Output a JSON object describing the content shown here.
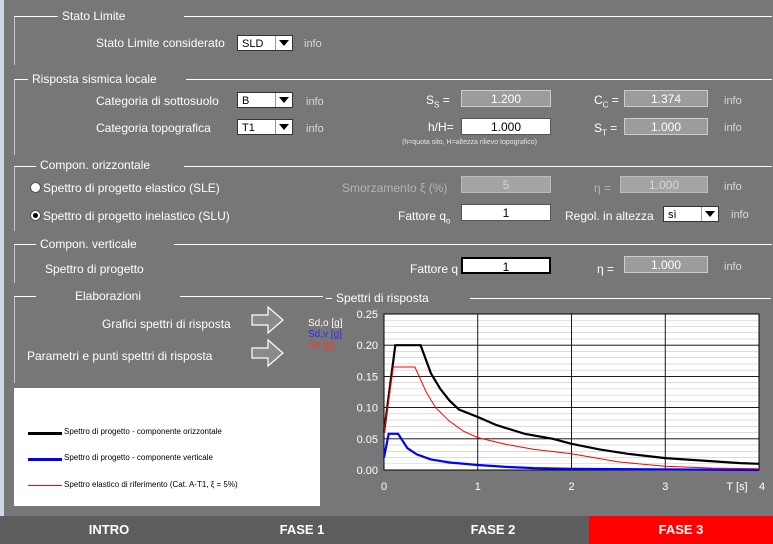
{
  "stato_limite": {
    "title": "Stato Limite",
    "considered_label": "Stato Limite considerato",
    "considered_value": "SLD",
    "info": "info"
  },
  "risposta_locale": {
    "title": "Risposta sismica locale",
    "sottosuolo_label": "Categoria di sottosuolo",
    "sottosuolo_value": "B",
    "topografica_label": "Categoria topografica",
    "topografica_value": "T1",
    "info": "info",
    "ss_label_main": "S",
    "ss_label_sub": "S",
    "ss_value": "1.200",
    "cc_label_main": "C",
    "cc_label_sub": "C",
    "cc_value": "1.374",
    "hh_label": "h/H=",
    "hh_value": "1.000",
    "hh_note": "(h=quota sito, H=altezza rilievo topografico)",
    "st_label_main": "S",
    "st_label_sub": "T",
    "st_value": "1.000"
  },
  "orizzontale": {
    "title": "Compon. orizzontale",
    "elastic_label": "Spettro di progetto elastico (SLE)",
    "inelastic_label": "Spettro di progetto inelastico (SLU)",
    "smorz_label": "Smorzamento ξ (%)",
    "smorz_value": "5",
    "eta_label": "η =",
    "eta_value": "1.000",
    "fattore_label": "Fattore q",
    "fattore_sub": "o",
    "fattore_value": "1",
    "regol_label": "Regol. in altezza",
    "regol_value": "sì",
    "info": "info"
  },
  "verticale": {
    "title": "Compon. verticale",
    "spettro_label": "Spettro di progetto",
    "fattore_label": "Fattore q",
    "fattore_value": "1",
    "eta_label": "η =",
    "eta_value": "1.000",
    "info": "info"
  },
  "elaborazioni": {
    "title": "Elaborazioni",
    "grafici_label": "Grafici spettri di risposta",
    "parametri_label": "Parametri e punti spettri di risposta"
  },
  "legend": {
    "horizontal": "Spettro di progetto - componente orizzontale",
    "vertical": "Spettro di progetto - componente verticale",
    "elastic": "Spettro elastico di riferimento (Cat. A-T1, ξ = 5%)"
  },
  "chart_data": {
    "type": "line",
    "title": "Spettri di risposta",
    "xlabel": "T [s]",
    "ylabel_lines": [
      "Sd,o [g]",
      "Sd,v [g]",
      "Se [g]"
    ],
    "xlim": [
      0,
      4
    ],
    "ylim": [
      0,
      0.25
    ],
    "x_ticks": [
      "0",
      "1",
      "2",
      "3",
      "4"
    ],
    "y_ticks": [
      "0.00",
      "0.05",
      "0.10",
      "0.15",
      "0.20",
      "0.25"
    ],
    "grid": true,
    "series": [
      {
        "name": "Spettro di progetto - componente orizzontale",
        "color": "#000000",
        "x": [
          0,
          0.12,
          0.39,
          0.5,
          0.6,
          0.7,
          0.8,
          1.0,
          1.2,
          1.5,
          1.8,
          2.0,
          2.3,
          2.6,
          3.0,
          3.4,
          3.8,
          4.0
        ],
        "y": [
          0.06,
          0.2,
          0.2,
          0.155,
          0.13,
          0.111,
          0.097,
          0.085,
          0.072,
          0.058,
          0.05,
          0.042,
          0.033,
          0.026,
          0.019,
          0.015,
          0.011,
          0.01
        ]
      },
      {
        "name": "Spettro di progetto - componente verticale",
        "color": "#0000ff",
        "x": [
          0,
          0.05,
          0.15,
          0.25,
          0.35,
          0.5,
          0.7,
          1.0,
          1.3,
          1.6,
          2.0,
          4.0
        ],
        "y": [
          0.02,
          0.058,
          0.058,
          0.035,
          0.025,
          0.017,
          0.012,
          0.008,
          0.005,
          0.003,
          0.002,
          0.0
        ]
      },
      {
        "name": "Spettro elastico di riferimento (Cat. A-T1, ξ = 5%)",
        "color": "#ff0000",
        "x": [
          0,
          0.1,
          0.33,
          0.45,
          0.55,
          0.7,
          0.85,
          1.0,
          1.3,
          1.6,
          2.0,
          2.5,
          3.0,
          3.5,
          4.0
        ],
        "y": [
          0.06,
          0.165,
          0.165,
          0.125,
          0.1,
          0.078,
          0.062,
          0.052,
          0.041,
          0.033,
          0.026,
          0.013,
          0.006,
          0.003,
          0.002
        ]
      }
    ]
  },
  "tabs": [
    {
      "label": "INTRO",
      "active": false
    },
    {
      "label": "FASE 1",
      "active": false
    },
    {
      "label": "FASE 2",
      "active": false
    },
    {
      "label": "FASE 3",
      "active": true
    }
  ],
  "colors": {
    "background": "#777777",
    "active_tab": "#ff0000",
    "inactive_tab": "#5d5d5d"
  }
}
